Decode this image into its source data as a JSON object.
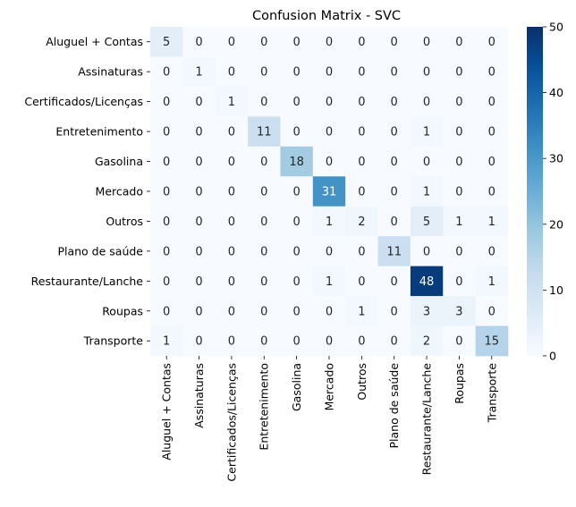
{
  "chart_data": {
    "type": "heatmap",
    "title": "Confusion Matrix - SVC",
    "xlabel": "",
    "ylabel": "",
    "row_labels": [
      "Aluguel + Contas",
      "Assinaturas",
      "Certificados/Licenças",
      "Entretenimento",
      "Gasolina",
      "Mercado",
      "Outros",
      "Plano de saúde",
      "Restaurante/Lanche",
      "Roupas",
      "Transporte"
    ],
    "col_labels": [
      "Aluguel + Contas",
      "Assinaturas",
      "Certificados/Licenças",
      "Entretenimento",
      "Gasolina",
      "Mercado",
      "Outros",
      "Plano de saúde",
      "Restaurante/Lanche",
      "Roupas",
      "Transporte"
    ],
    "values": [
      [
        5,
        0,
        0,
        0,
        0,
        0,
        0,
        0,
        0,
        0,
        0
      ],
      [
        0,
        1,
        0,
        0,
        0,
        0,
        0,
        0,
        0,
        0,
        0
      ],
      [
        0,
        0,
        1,
        0,
        0,
        0,
        0,
        0,
        0,
        0,
        0
      ],
      [
        0,
        0,
        0,
        11,
        0,
        0,
        0,
        0,
        1,
        0,
        0
      ],
      [
        0,
        0,
        0,
        0,
        18,
        0,
        0,
        0,
        0,
        0,
        0
      ],
      [
        0,
        0,
        0,
        0,
        0,
        31,
        0,
        0,
        1,
        0,
        0
      ],
      [
        0,
        0,
        0,
        0,
        0,
        1,
        2,
        0,
        5,
        1,
        1
      ],
      [
        0,
        0,
        0,
        0,
        0,
        0,
        0,
        11,
        0,
        0,
        0
      ],
      [
        0,
        0,
        0,
        0,
        0,
        1,
        0,
        0,
        48,
        0,
        1
      ],
      [
        0,
        0,
        0,
        0,
        0,
        0,
        1,
        0,
        3,
        3,
        0
      ],
      [
        1,
        0,
        0,
        0,
        0,
        0,
        0,
        0,
        2,
        0,
        15
      ]
    ],
    "colorbar": {
      "min": 0,
      "max": 50,
      "ticks": [
        0,
        10,
        20,
        30,
        40,
        50
      ]
    },
    "colormap": "Blues",
    "colors": {
      "low": "#f7fbff",
      "high": "#08306b"
    }
  }
}
